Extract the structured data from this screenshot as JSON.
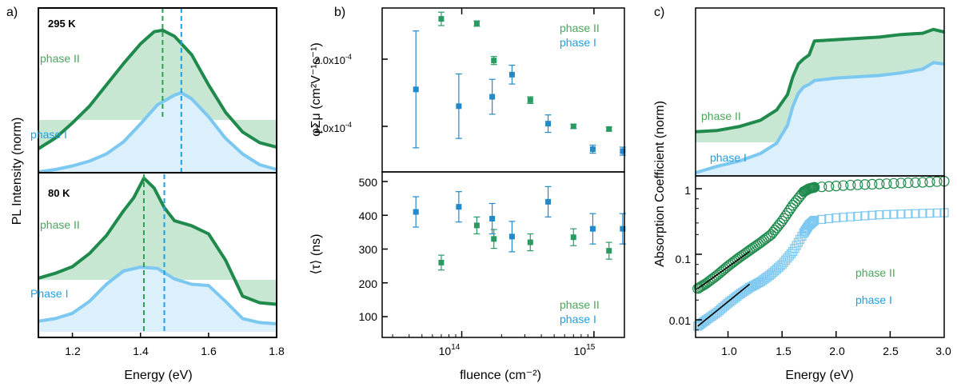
{
  "colors": {
    "phase1_line": "#7cc8f0",
    "phase1_fill": "#dcf0fb",
    "phase1_text": "#1e9fe0",
    "phase1_marker": "#2389c8",
    "phase2_line": "#1f8a4c",
    "phase2_fill": "#c7e7d3",
    "phase2_text": "#4aa65a",
    "phase2_marker": "#2a9a63",
    "vline_green": "#2ba050",
    "vline_blue": "#1e9fe0",
    "fit_line": "#000000"
  },
  "panel_a": {
    "label": "a)",
    "ylabel": "PL Intensity (norm)",
    "xlabel": "Energy (eV)",
    "xticks": [
      "1.2",
      "1.4",
      "1.6",
      "1.8"
    ],
    "top_temp": "295 K",
    "bottom_temp": "80 K",
    "top_phase2_label": "phase II",
    "top_phase1_label": "phase I",
    "bottom_phase2_label": "phase II",
    "bottom_phase1_label": "Phase I"
  },
  "panel_b": {
    "label": "b)",
    "ylabel_top": "φΣμ (cm²V⁻¹s⁻¹)",
    "ylabel_bottom": "⟨τ⟩ (ns)",
    "xlabel": "fluence (cm⁻²)",
    "yticks_top": [
      "1.0x10",
      "2.0x10"
    ],
    "ytick_exp": "-4",
    "yticks_bottom": [
      "100",
      "200",
      "300",
      "400",
      "500"
    ],
    "xticks": [
      "10",
      "10"
    ],
    "xtick_exps": [
      "14",
      "15"
    ],
    "legend_top": [
      "phase II",
      "phase I"
    ],
    "legend_bottom": [
      "phase II",
      "phase I"
    ]
  },
  "panel_c": {
    "label": "c)",
    "ylabel": "Absorption Coefficient (norm)",
    "xlabel": "Energy (eV)",
    "xticks": [
      "1.0",
      "1.5",
      "2.0",
      "2.5",
      "3.0"
    ],
    "yticks_bottom": [
      "1",
      "0.1",
      "0.01"
    ],
    "top_phase2_label": "phase II",
    "top_phase1_label": "phase I",
    "bottom_phase2_label": "phase II",
    "bottom_phase1_label": "phase I"
  },
  "chart_data": [
    {
      "type": "area",
      "panel": "a-top (295 K)",
      "x_unit": "eV",
      "xlim": [
        1.1,
        1.8
      ],
      "vlines": {
        "phase II": 1.465,
        "phase I": 1.52
      },
      "series": [
        {
          "name": "phase II",
          "x": [
            1.1,
            1.15,
            1.2,
            1.25,
            1.3,
            1.35,
            1.4,
            1.44,
            1.465,
            1.5,
            1.55,
            1.6,
            1.65,
            1.7,
            1.75,
            1.8
          ],
          "y": [
            0.1,
            0.17,
            0.27,
            0.38,
            0.52,
            0.66,
            0.79,
            0.87,
            0.88,
            0.84,
            0.72,
            0.52,
            0.34,
            0.21,
            0.14,
            0.11
          ]
        },
        {
          "name": "phase I",
          "x": [
            1.1,
            1.15,
            1.2,
            1.25,
            1.3,
            1.35,
            1.4,
            1.45,
            1.5,
            1.52,
            1.55,
            1.6,
            1.65,
            1.7,
            1.75,
            1.8
          ],
          "y": [
            0.02,
            0.04,
            0.07,
            0.11,
            0.17,
            0.27,
            0.42,
            0.58,
            0.66,
            0.68,
            0.63,
            0.48,
            0.3,
            0.17,
            0.08,
            0.04
          ]
        }
      ]
    },
    {
      "type": "area",
      "panel": "a-bottom (80 K)",
      "x_unit": "eV",
      "xlim": [
        1.1,
        1.8
      ],
      "vlines": {
        "phase II": 1.41,
        "phase I": 1.47
      },
      "series": [
        {
          "name": "phase II",
          "x": [
            1.1,
            1.15,
            1.2,
            1.25,
            1.3,
            1.35,
            1.38,
            1.41,
            1.44,
            1.47,
            1.5,
            1.55,
            1.6,
            1.65,
            1.7,
            1.75,
            1.8
          ],
          "y": [
            0.23,
            0.26,
            0.3,
            0.38,
            0.49,
            0.64,
            0.72,
            0.84,
            0.78,
            0.66,
            0.58,
            0.55,
            0.5,
            0.34,
            0.12,
            0.08,
            0.07
          ]
        },
        {
          "name": "Phase I",
          "x": [
            1.1,
            1.15,
            1.2,
            1.25,
            1.3,
            1.35,
            1.4,
            1.45,
            1.5,
            1.55,
            1.6,
            1.65,
            1.7,
            1.75,
            1.8
          ],
          "y": [
            0.02,
            0.04,
            0.08,
            0.17,
            0.3,
            0.4,
            0.43,
            0.42,
            0.34,
            0.3,
            0.29,
            0.17,
            0.04,
            0.01,
            0.0
          ]
        }
      ]
    },
    {
      "type": "scatter",
      "panel": "b-top",
      "x_unit": "cm^-2",
      "xlog": true,
      "xlim": [
        25000000000000.0,
        1700000000000000.0
      ],
      "ylim": [
        4e-05,
        0.00027
      ],
      "series": [
        {
          "name": "phase II",
          "points": [
            [
              70000000000000.0,
              0.00026,
              1e-05
            ],
            [
              130000000000000.0,
              0.000253,
              4e-06
            ],
            [
              175000000000000.0,
              0.000198,
              6e-06
            ],
            [
              330000000000000.0,
              0.000139,
              5e-06
            ],
            [
              700000000000000.0,
              0.0001,
              3e-06
            ],
            [
              1300000000000000.0,
              9.6e-05,
              3e-06
            ]
          ]
        },
        {
          "name": "phase I",
          "points": [
            [
              45000000000000.0,
              0.000155,
              8.7e-05
            ],
            [
              95000000000000.0,
              0.00013,
              4.8e-05
            ],
            [
              170000000000000.0,
              0.000144,
              2.6e-05
            ],
            [
              240000000000000.0,
              0.000177,
              1.4e-05
            ],
            [
              450000000000000.0,
              0.000104,
              1.3e-05
            ],
            [
              980000000000000.0,
              6.6e-05,
              6e-06
            ],
            [
              1650000000000000.0,
              6.3e-05,
              6e-06
            ]
          ]
        }
      ]
    },
    {
      "type": "scatter",
      "panel": "b-bottom",
      "x_unit": "cm^-2",
      "xlog": true,
      "xlim": [
        25000000000000.0,
        1700000000000000.0
      ],
      "ylim": [
        50,
        510
      ],
      "series": [
        {
          "name": "phase II",
          "points": [
            [
              70000000000000.0,
              260,
              22
            ],
            [
              130000000000000.0,
              370,
              25
            ],
            [
              175000000000000.0,
              330,
              28
            ],
            [
              330000000000000.0,
              320,
              25
            ],
            [
              700000000000000.0,
              335,
              25
            ],
            [
              1300000000000000.0,
              295,
              25
            ]
          ]
        },
        {
          "name": "phase I",
          "points": [
            [
              45000000000000.0,
              410,
              45
            ],
            [
              95000000000000.0,
              425,
              45
            ],
            [
              170000000000000.0,
              390,
              45
            ],
            [
              240000000000000.0,
              337,
              45
            ],
            [
              450000000000000.0,
              440,
              45
            ],
            [
              980000000000000.0,
              360,
              45
            ],
            [
              1650000000000000.0,
              360,
              45
            ]
          ]
        }
      ]
    },
    {
      "type": "area",
      "panel": "c-top",
      "x_unit": "eV",
      "xlim": [
        0.7,
        3.0
      ],
      "series": [
        {
          "name": "phase II",
          "x": [
            0.7,
            0.9,
            1.1,
            1.3,
            1.45,
            1.55,
            1.6,
            1.65,
            1.7,
            1.75,
            1.8,
            2.0,
            2.2,
            2.4,
            2.6,
            2.8,
            2.9,
            3.0
          ],
          "y": [
            0.07,
            0.08,
            0.11,
            0.16,
            0.24,
            0.36,
            0.5,
            0.6,
            0.64,
            0.67,
            0.78,
            0.79,
            0.8,
            0.81,
            0.83,
            0.84,
            0.87,
            0.85
          ]
        },
        {
          "name": "phase I",
          "x": [
            0.7,
            0.9,
            1.1,
            1.3,
            1.45,
            1.55,
            1.6,
            1.65,
            1.7,
            1.75,
            1.8,
            2.0,
            2.2,
            2.4,
            2.6,
            2.8,
            2.9,
            3.0
          ],
          "y": [
            -0.25,
            -0.2,
            -0.16,
            -0.1,
            -0.02,
            0.12,
            0.27,
            0.37,
            0.42,
            0.44,
            0.47,
            0.49,
            0.5,
            0.51,
            0.53,
            0.56,
            0.61,
            0.6
          ]
        }
      ]
    },
    {
      "type": "scatter",
      "panel": "c-bottom",
      "x_unit": "eV",
      "ylog": true,
      "xlim": [
        0.7,
        3.0
      ],
      "ylim": [
        0.005,
        2.0
      ],
      "series": [
        {
          "name": "phase II",
          "x": [
            0.72,
            0.8,
            0.9,
            1.0,
            1.1,
            1.2,
            1.3,
            1.4,
            1.5,
            1.6,
            1.7,
            1.75,
            1.8,
            2.0,
            2.2,
            2.4,
            2.6,
            2.8,
            3.0
          ],
          "y": [
            0.03,
            0.036,
            0.048,
            0.066,
            0.088,
            0.115,
            0.15,
            0.2,
            0.32,
            0.56,
            0.9,
            1.0,
            1.05,
            1.1,
            1.15,
            1.18,
            1.22,
            1.25,
            1.3
          ]
        },
        {
          "name": "phase I",
          "x": [
            0.72,
            0.8,
            0.9,
            1.0,
            1.1,
            1.2,
            1.3,
            1.4,
            1.5,
            1.6,
            1.7,
            1.75,
            1.8,
            2.0,
            2.2,
            2.4,
            2.6,
            2.8,
            3.0
          ],
          "y": [
            0.008,
            0.01,
            0.013,
            0.018,
            0.024,
            0.031,
            0.038,
            0.05,
            0.07,
            0.11,
            0.21,
            0.28,
            0.33,
            0.36,
            0.38,
            0.4,
            0.41,
            0.42,
            0.43
          ]
        },
        {
          "name": "fit phase II",
          "x": [
            0.72,
            1.2
          ],
          "y": [
            0.03,
            0.11
          ]
        },
        {
          "name": "fit phase I",
          "x": [
            0.72,
            1.2
          ],
          "y": [
            0.008,
            0.035
          ]
        }
      ]
    }
  ]
}
